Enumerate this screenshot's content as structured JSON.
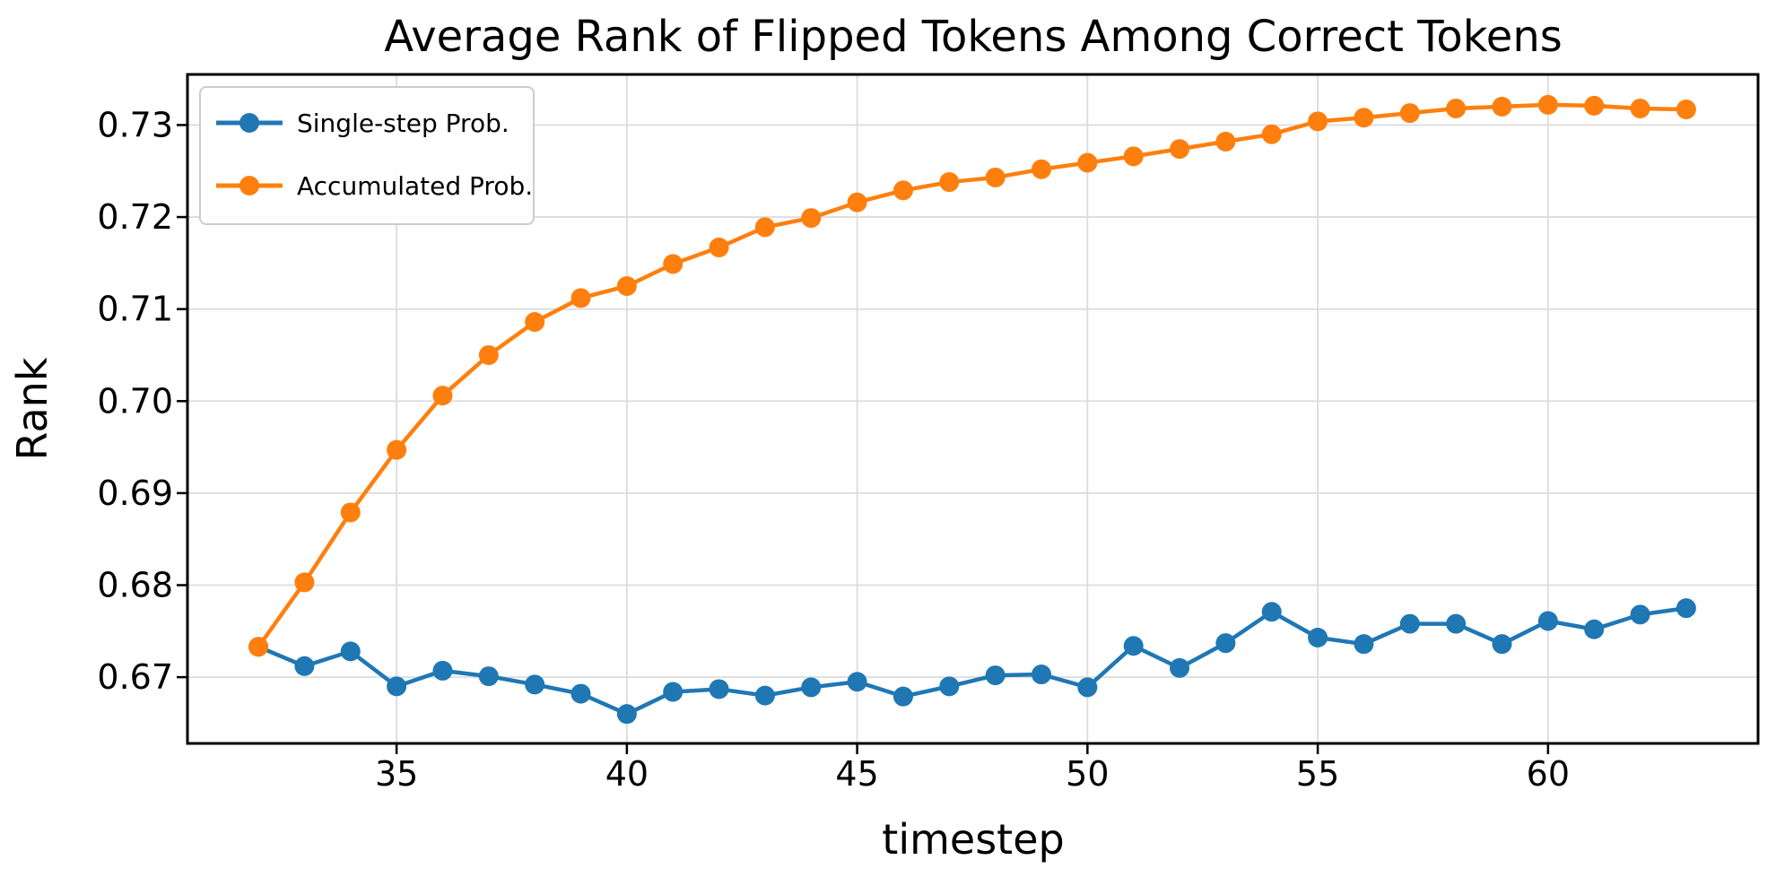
{
  "figure": {
    "background": "#ffffff"
  },
  "chart_data": {
    "type": "line",
    "title": "Average Rank of Flipped Tokens Among Correct Tokens",
    "xlabel": "timestep",
    "ylabel": "Rank",
    "x": [
      32,
      33,
      34,
      35,
      36,
      37,
      38,
      39,
      40,
      41,
      42,
      43,
      44,
      45,
      46,
      47,
      48,
      49,
      50,
      51,
      52,
      53,
      54,
      55,
      56,
      57,
      58,
      59,
      60,
      61,
      62,
      63
    ],
    "series": [
      {
        "name": "Single-step Prob.",
        "color": "#1f77b4",
        "values": [
          0.6733,
          0.6712,
          0.6728,
          0.669,
          0.6707,
          0.6701,
          0.6692,
          0.6682,
          0.666,
          0.6684,
          0.6687,
          0.668,
          0.6689,
          0.6695,
          0.6679,
          0.669,
          0.6702,
          0.6703,
          0.6689,
          0.6734,
          0.671,
          0.6737,
          0.6771,
          0.6743,
          0.6736,
          0.6758,
          0.6758,
          0.6736,
          0.6761,
          0.6752,
          0.6768,
          0.6775
        ]
      },
      {
        "name": "Accumulated Prob.",
        "color": "#ff7f0e",
        "values": [
          0.6733,
          0.6803,
          0.6879,
          0.6947,
          0.7006,
          0.705,
          0.7086,
          0.7112,
          0.7125,
          0.7149,
          0.7167,
          0.7189,
          0.7199,
          0.7216,
          0.7229,
          0.7238,
          0.7243,
          0.7252,
          0.7259,
          0.7266,
          0.7274,
          0.7282,
          0.729,
          0.7304,
          0.7308,
          0.7313,
          0.7318,
          0.732,
          0.7322,
          0.7321,
          0.7318,
          0.7317
        ]
      }
    ],
    "xlim": [
      30.46,
      64.56
    ],
    "ylim": [
      0.6628,
      0.7355
    ],
    "xticks": [
      35,
      40,
      45,
      50,
      55,
      60
    ],
    "yticks": [
      0.67,
      0.68,
      0.69,
      0.7,
      0.71,
      0.72,
      0.73
    ],
    "ytick_decimals": 2,
    "grid": true,
    "grid_color": "#dcdcdc",
    "axis_color": "#000000",
    "legend_position": "upper-left",
    "marker": "circle"
  }
}
